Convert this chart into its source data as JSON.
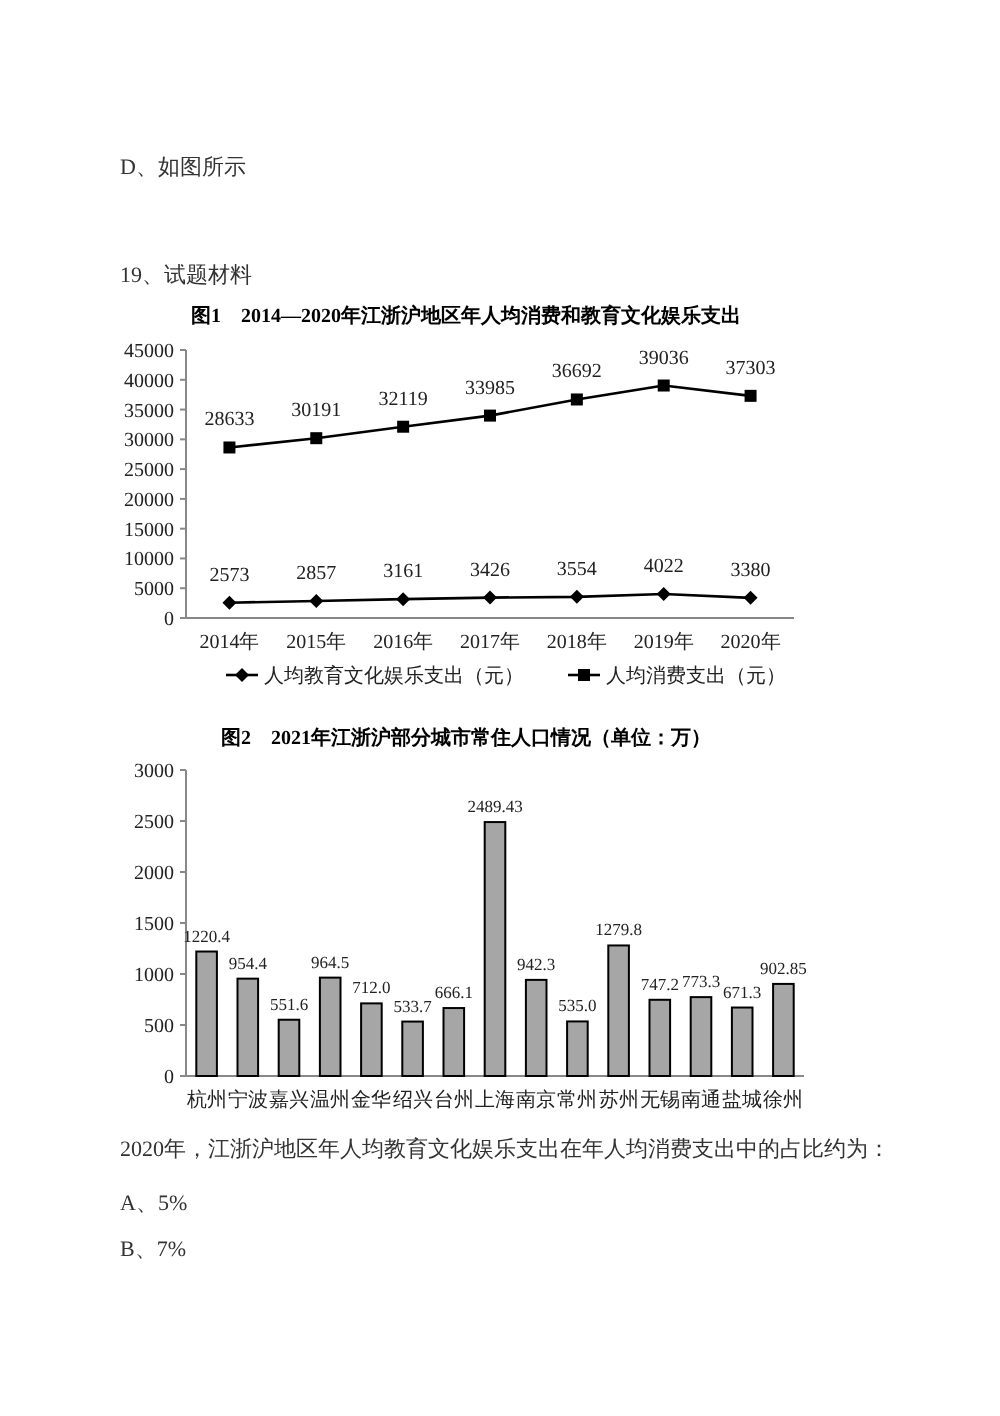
{
  "chart_data": [
    {
      "type": "line",
      "title": "图1　2014—2020年江浙沪地区年人均消费和教育文化娱乐支出",
      "categories": [
        "2014年",
        "2015年",
        "2016年",
        "2017年",
        "2018年",
        "2019年",
        "2020年"
      ],
      "series": [
        {
          "name": "人均教育文化娱乐支出（元）",
          "color": "#000000",
          "marker": "diamond",
          "values": [
            2573,
            2857,
            3161,
            3426,
            3554,
            4022,
            3380
          ]
        },
        {
          "name": "人均消费支出（元）",
          "color": "#000000",
          "marker": "square",
          "values": [
            28633,
            30191,
            32119,
            33985,
            36692,
            39036,
            37303
          ]
        }
      ],
      "ylim": [
        0,
        45000
      ],
      "yticks": [
        0,
        5000,
        10000,
        15000,
        20000,
        25000,
        30000,
        35000,
        40000,
        45000
      ],
      "data_labels": true,
      "legend": "bottom",
      "annotations": [
        "D、如图所示",
        "19、试题材料"
      ]
    },
    {
      "type": "bar",
      "title": "图2　2021年江浙沪部分城市常住人口情况（单位：万）",
      "categories": [
        "杭州",
        "宁波",
        "嘉兴",
        "温州",
        "金华",
        "绍兴",
        "台州",
        "上海",
        "南京",
        "常州",
        "苏州",
        "无锡",
        "南通",
        "盐城",
        "徐州"
      ],
      "values": [
        1220.4,
        954.4,
        551.6,
        964.5,
        712.0,
        533.7,
        666.1,
        2489.43,
        942.3,
        535.0,
        1279.8,
        747.2,
        773.3,
        671.3,
        902.85
      ],
      "value_labels": [
        "1220.4",
        "954.4",
        "551.6",
        "964.5",
        "712.0",
        "533.7",
        "666.1",
        "2489.43",
        "942.3",
        "535.0",
        "1279.8",
        "747.2",
        "773.3",
        "671.3",
        "902.85"
      ],
      "color": "#a6a6a6",
      "ylim": [
        0,
        3000
      ],
      "yticks": [
        0,
        500,
        1000,
        1500,
        2000,
        2500,
        3000
      ],
      "annotations": [
        "2020年，江浙沪地区年人均教育文化娱乐支出在年人均消费支出中的占比约为：",
        "A、5%",
        "B、7%"
      ]
    }
  ]
}
